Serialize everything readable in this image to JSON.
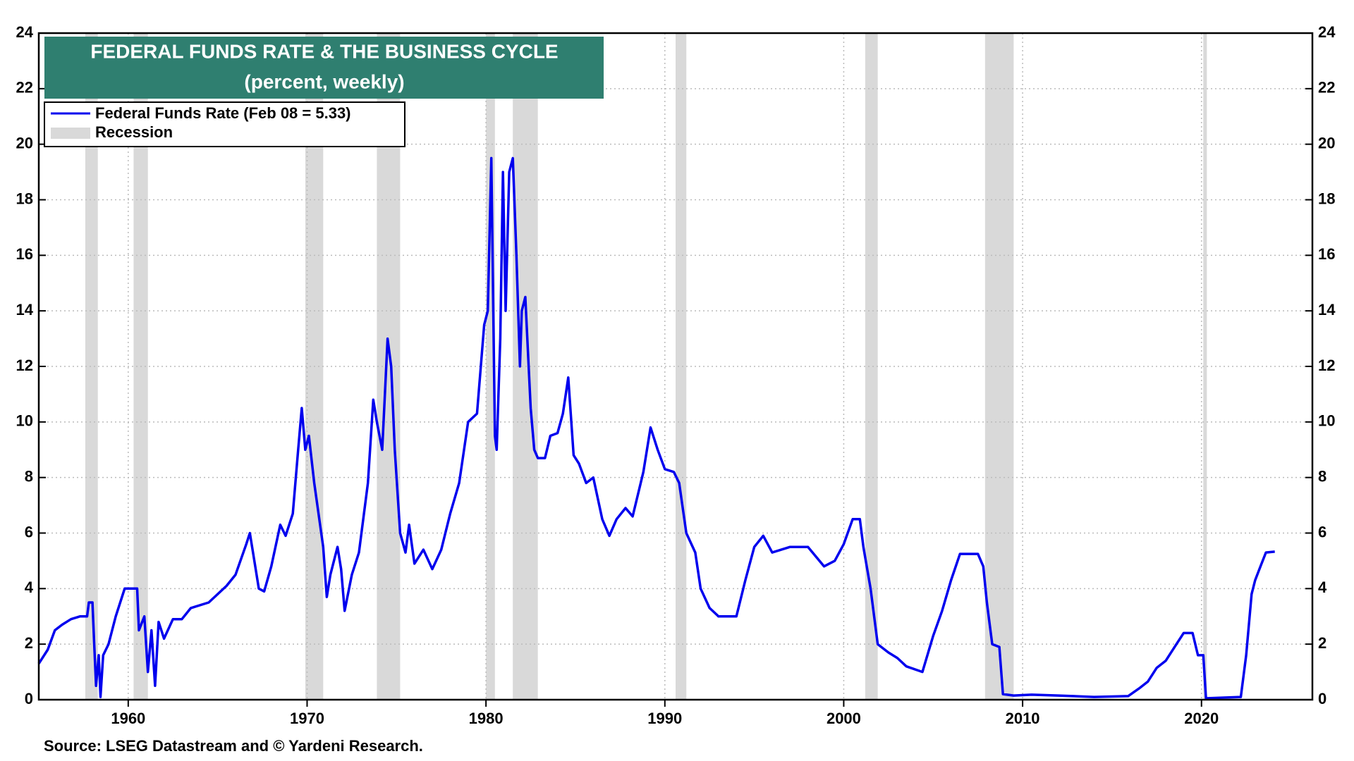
{
  "chart_data": {
    "type": "line",
    "title": "FEDERAL FUNDS RATE & THE BUSINESS CYCLE",
    "subtitle": "(percent, weekly)",
    "source": "Source: LSEG Datastream and © Yardeni Research.",
    "xlim": [
      1955,
      2026.2
    ],
    "xticks": [
      1960,
      1970,
      1980,
      1990,
      2000,
      2010,
      2020
    ],
    "ylim": [
      0,
      24
    ],
    "yticks": [
      0,
      2,
      4,
      6,
      8,
      10,
      12,
      14,
      16,
      18,
      20,
      22,
      24
    ],
    "y2lim": [
      0,
      24
    ],
    "y2ticks": [
      0,
      2,
      4,
      6,
      8,
      10,
      12,
      14,
      16,
      18,
      20,
      22,
      24
    ],
    "grid": true,
    "legend": "upper left",
    "recessions": {
      "name": "Recession",
      "color": "#d9d9d9",
      "spans": [
        [
          1957.6,
          1958.3
        ],
        [
          1960.3,
          1961.1
        ],
        [
          1969.9,
          1970.9
        ],
        [
          1973.9,
          1975.2
        ],
        [
          1980.0,
          1980.5
        ],
        [
          1981.5,
          1982.9
        ],
        [
          1990.6,
          1991.2
        ],
        [
          2001.2,
          2001.9
        ],
        [
          2007.9,
          2009.5
        ],
        [
          2020.1,
          2020.3
        ]
      ]
    },
    "series": [
      {
        "name": "Federal Funds Rate (Feb 08 = 5.33)",
        "color": "#0000ee",
        "x": [
          1955.0,
          1955.5,
          1955.9,
          1956.3,
          1956.8,
          1957.3,
          1957.7,
          1957.8,
          1958.0,
          1958.1,
          1958.2,
          1958.35,
          1958.45,
          1958.6,
          1958.9,
          1959.3,
          1959.8,
          1960.5,
          1960.6,
          1960.9,
          1961.1,
          1961.3,
          1961.5,
          1961.7,
          1962.0,
          1962.5,
          1963.0,
          1963.5,
          1964.5,
          1965.5,
          1966.0,
          1966.6,
          1966.8,
          1967.0,
          1967.3,
          1967.6,
          1968.0,
          1968.5,
          1968.8,
          1969.2,
          1969.5,
          1969.7,
          1969.9,
          1970.1,
          1970.4,
          1970.9,
          1971.1,
          1971.3,
          1971.7,
          1971.9,
          1972.1,
          1972.5,
          1972.9,
          1973.4,
          1973.7,
          1973.9,
          1974.2,
          1974.5,
          1974.7,
          1974.9,
          1975.2,
          1975.5,
          1975.7,
          1976.0,
          1976.5,
          1977.0,
          1977.5,
          1978.0,
          1978.5,
          1979.0,
          1979.5,
          1979.9,
          1980.1,
          1980.3,
          1980.5,
          1980.6,
          1980.8,
          1980.95,
          1981.1,
          1981.3,
          1981.5,
          1981.7,
          1981.9,
          1982.0,
          1982.2,
          1982.5,
          1982.7,
          1982.9,
          1983.3,
          1983.6,
          1984.0,
          1984.3,
          1984.6,
          1984.9,
          1985.2,
          1985.6,
          1986.0,
          1986.5,
          1986.9,
          1987.3,
          1987.8,
          1988.2,
          1988.8,
          1989.2,
          1989.6,
          1990.0,
          1990.5,
          1990.8,
          1991.2,
          1991.7,
          1992.0,
          1992.5,
          1993.0,
          1994.0,
          1994.5,
          1995.0,
          1995.5,
          1996.0,
          1997.0,
          1998.0,
          1998.9,
          1999.5,
          2000.0,
          2000.5,
          2000.9,
          2001.1,
          2001.5,
          2001.9,
          2002.5,
          2003.0,
          2003.5,
          2004.4,
          2005.0,
          2005.5,
          2006.0,
          2006.5,
          2007.5,
          2007.8,
          2008.0,
          2008.3,
          2008.7,
          2008.9,
          2009.5,
          2010.5,
          2012.0,
          2014.0,
          2015.9,
          2016.5,
          2017.0,
          2017.5,
          2018.0,
          2018.5,
          2019.0,
          2019.5,
          2019.8,
          2020.1,
          2020.25,
          2022.2,
          2022.5,
          2022.8,
          2023.0,
          2023.3,
          2023.6,
          2024.1
        ],
        "values": [
          1.3,
          1.8,
          2.5,
          2.7,
          2.9,
          3.0,
          3.0,
          3.5,
          3.5,
          2.0,
          0.5,
          1.6,
          0.1,
          1.6,
          2.0,
          3.0,
          4.0,
          4.0,
          2.5,
          3.0,
          1.0,
          2.5,
          0.5,
          2.8,
          2.2,
          2.9,
          2.9,
          3.3,
          3.5,
          4.1,
          4.5,
          5.6,
          6.0,
          5.2,
          4.0,
          3.9,
          4.8,
          6.3,
          5.9,
          6.7,
          9.0,
          10.5,
          9.0,
          9.5,
          7.8,
          5.5,
          3.7,
          4.5,
          5.5,
          4.7,
          3.2,
          4.5,
          5.3,
          7.8,
          10.8,
          10.0,
          9.0,
          13.0,
          12.0,
          9.0,
          6.0,
          5.3,
          6.3,
          4.9,
          5.4,
          4.7,
          5.4,
          6.7,
          7.8,
          10.0,
          10.3,
          13.5,
          14.0,
          19.5,
          9.5,
          9.0,
          13.0,
          19.0,
          14.0,
          19.0,
          19.5,
          16.0,
          12.0,
          14.0,
          14.5,
          10.5,
          9.0,
          8.7,
          8.7,
          9.5,
          9.6,
          10.3,
          11.6,
          8.8,
          8.5,
          7.8,
          8.0,
          6.5,
          5.9,
          6.5,
          6.9,
          6.6,
          8.2,
          9.8,
          9.0,
          8.3,
          8.2,
          7.8,
          6.0,
          5.3,
          4.0,
          3.3,
          3.0,
          3.0,
          4.3,
          5.5,
          5.9,
          5.3,
          5.5,
          5.5,
          4.8,
          5.0,
          5.6,
          6.5,
          6.5,
          5.5,
          4.0,
          2.0,
          1.7,
          1.5,
          1.2,
          1.0,
          2.3,
          3.2,
          4.3,
          5.25,
          5.25,
          4.8,
          3.5,
          2.0,
          1.9,
          0.2,
          0.15,
          0.18,
          0.15,
          0.1,
          0.13,
          0.4,
          0.65,
          1.15,
          1.4,
          1.9,
          2.4,
          2.4,
          1.6,
          1.6,
          0.05,
          0.1,
          1.6,
          3.8,
          4.3,
          4.8,
          5.3,
          5.33
        ]
      }
    ]
  }
}
